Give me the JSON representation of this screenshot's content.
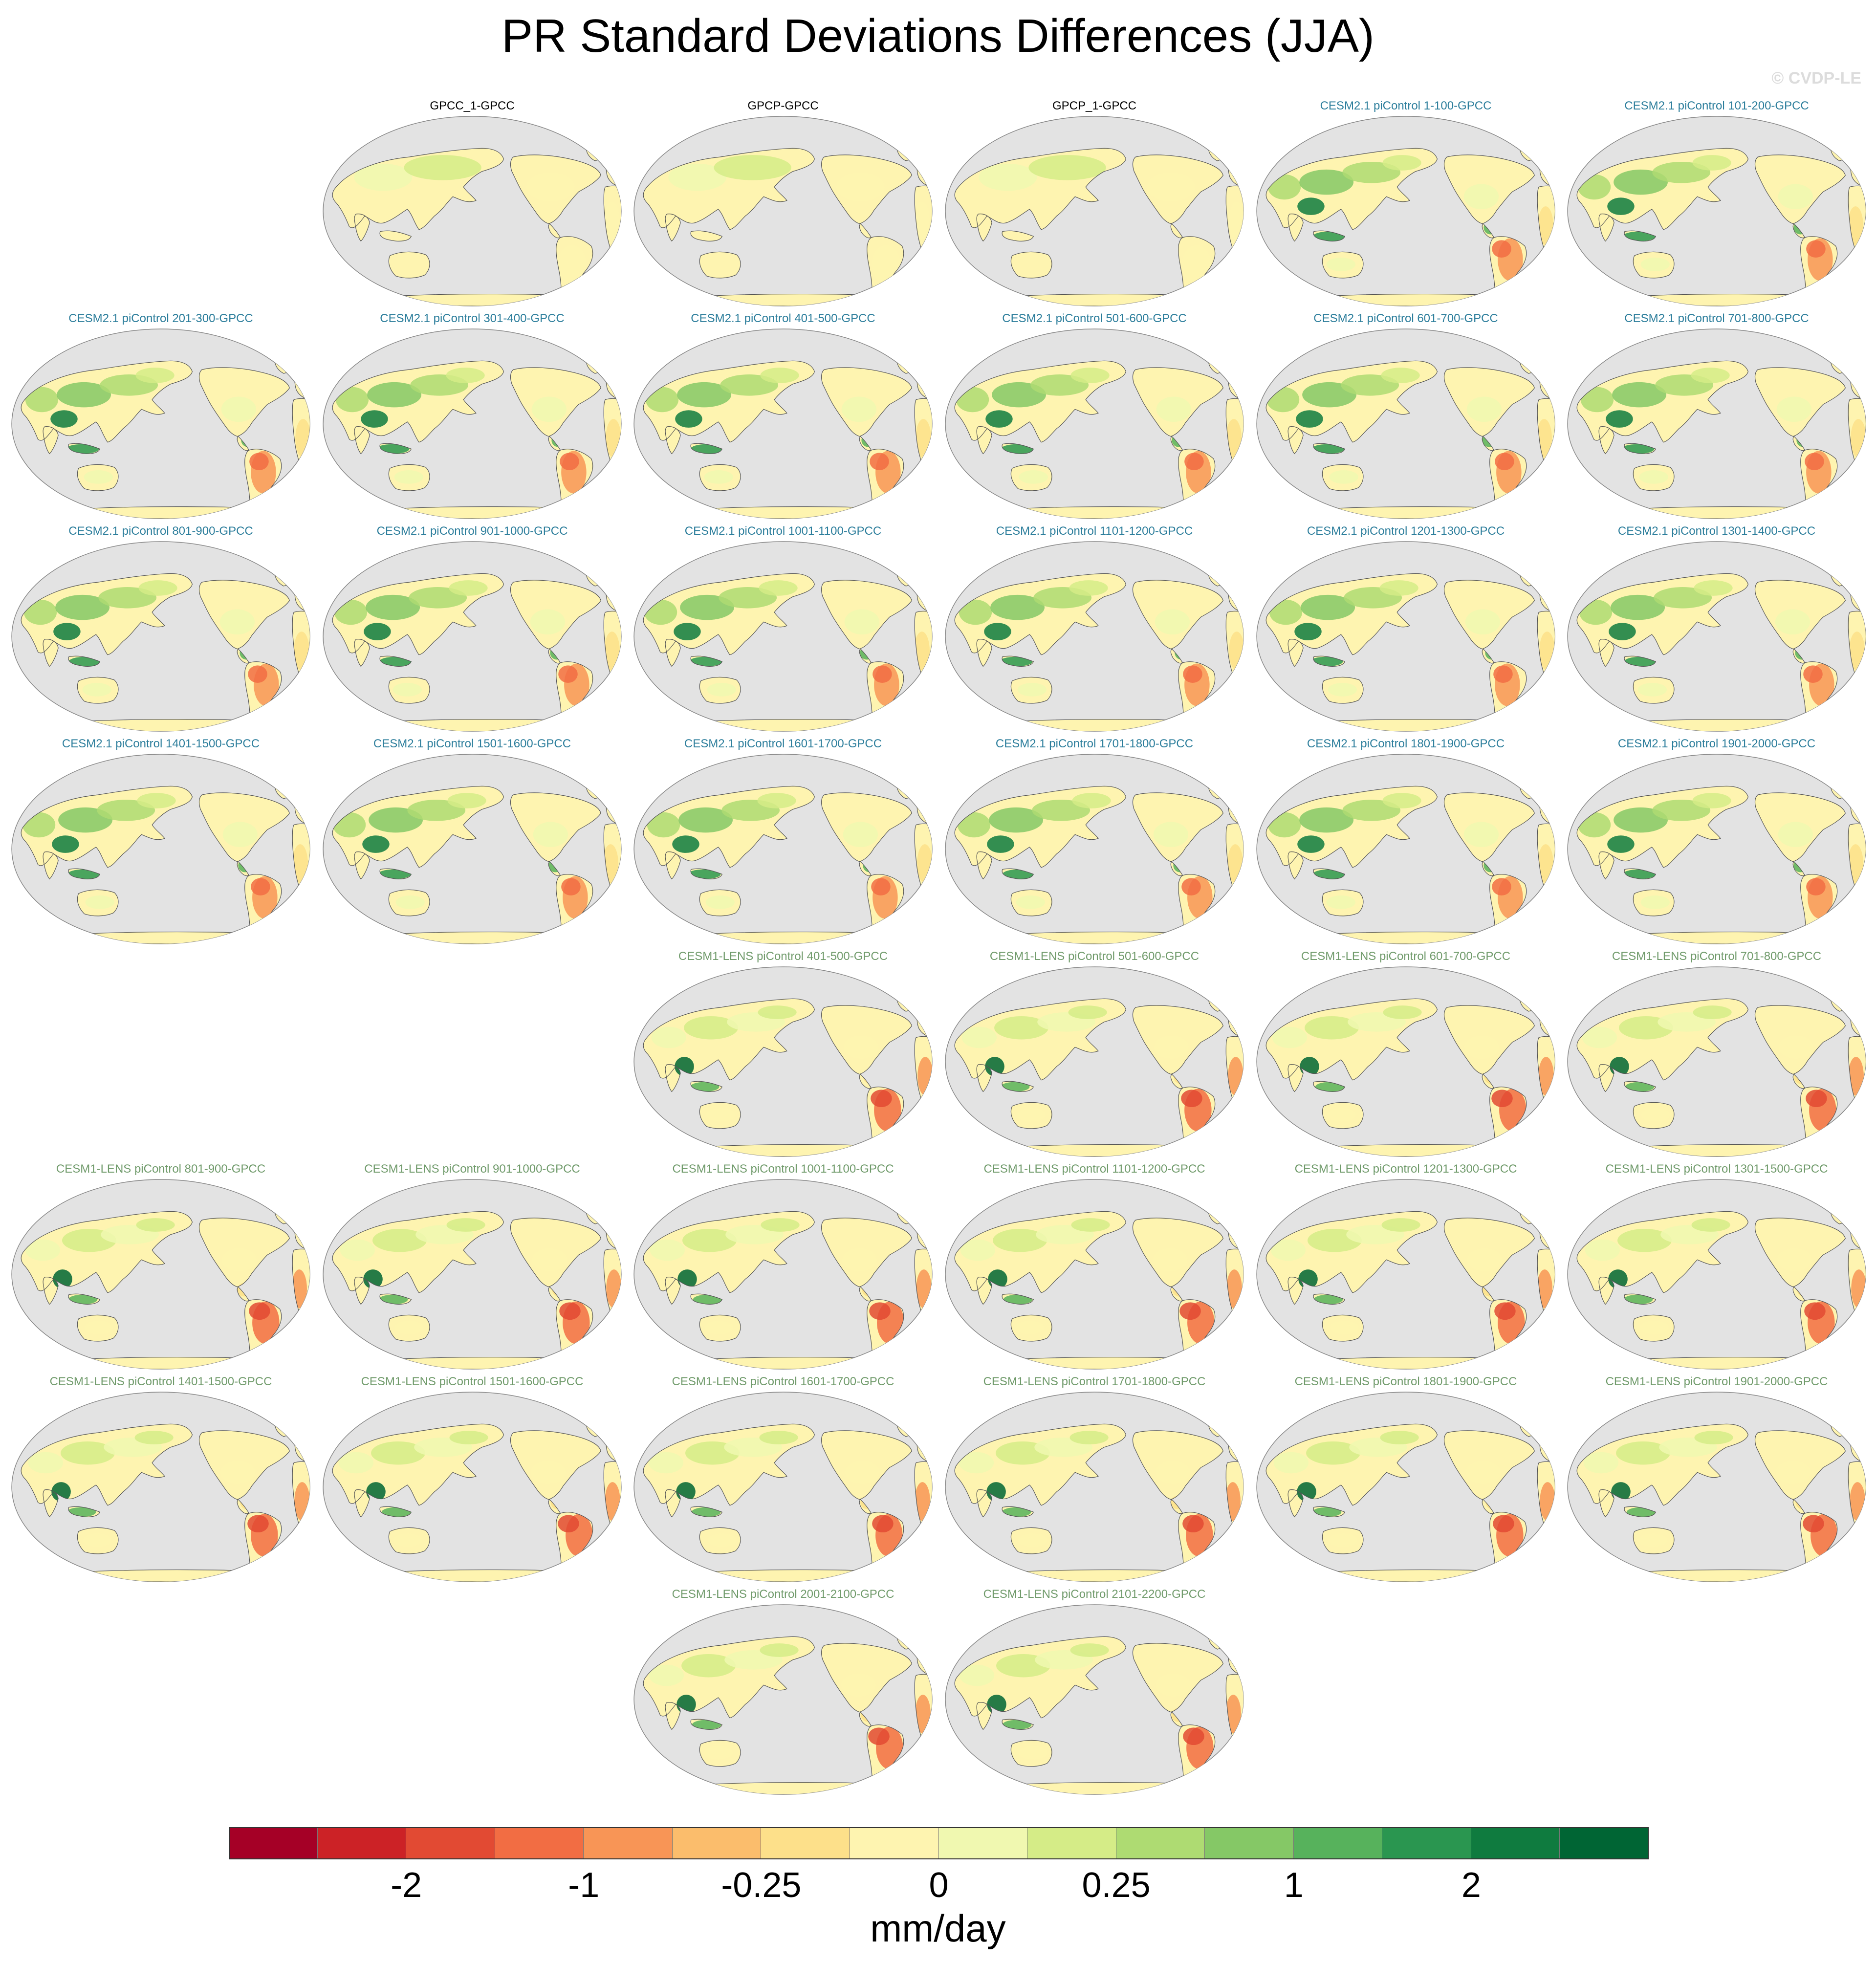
{
  "title": "PR Standard Deviations Differences (JJA)",
  "watermark": "© CVDP-LE",
  "colors": {
    "obs_title": "#000000",
    "cesm2_title": "#2b7d9b",
    "cesm1_title": "#6f9a6a",
    "ocean": "#e3e3e3",
    "coast": "#555555"
  },
  "colorbar": {
    "colors": [
      "#a50026",
      "#cc2226",
      "#e24a33",
      "#f26d43",
      "#f89556",
      "#fbbd6c",
      "#fde08a",
      "#fef4b0",
      "#f0f8b0",
      "#d5ec87",
      "#aedb72",
      "#85c866",
      "#57b25c",
      "#2a9650",
      "#0f7b3f",
      "#006534"
    ],
    "labels": [
      "-2",
      "-1",
      "-0.25",
      "0",
      "0.25",
      "1",
      "2"
    ],
    "units": "mm/day"
  },
  "panels": [
    {
      "label": "GPCC_1-GPCC",
      "group": "obs"
    },
    {
      "label": "GPCP-GPCC",
      "group": "obs"
    },
    {
      "label": "GPCP_1-GPCC",
      "group": "obs"
    },
    {
      "label": "CESM2.1 piControl 1-100-GPCC",
      "group": "cesm2"
    },
    {
      "label": "CESM2.1 piControl 101-200-GPCC",
      "group": "cesm2"
    },
    {
      "label": "CESM2.1 piControl 201-300-GPCC",
      "group": "cesm2"
    },
    {
      "label": "CESM2.1 piControl 301-400-GPCC",
      "group": "cesm2"
    },
    {
      "label": "CESM2.1 piControl 401-500-GPCC",
      "group": "cesm2"
    },
    {
      "label": "CESM2.1 piControl 501-600-GPCC",
      "group": "cesm2"
    },
    {
      "label": "CESM2.1 piControl 601-700-GPCC",
      "group": "cesm2"
    },
    {
      "label": "CESM2.1 piControl 701-800-GPCC",
      "group": "cesm2"
    },
    {
      "label": "CESM2.1 piControl 801-900-GPCC",
      "group": "cesm2"
    },
    {
      "label": "CESM2.1 piControl 901-1000-GPCC",
      "group": "cesm2"
    },
    {
      "label": "CESM2.1 piControl 1001-1100-GPCC",
      "group": "cesm2"
    },
    {
      "label": "CESM2.1 piControl 1101-1200-GPCC",
      "group": "cesm2"
    },
    {
      "label": "CESM2.1 piControl 1201-1300-GPCC",
      "group": "cesm2"
    },
    {
      "label": "CESM2.1 piControl 1301-1400-GPCC",
      "group": "cesm2"
    },
    {
      "label": "CESM2.1 piControl 1401-1500-GPCC",
      "group": "cesm2"
    },
    {
      "label": "CESM2.1 piControl 1501-1600-GPCC",
      "group": "cesm2"
    },
    {
      "label": "CESM2.1 piControl 1601-1700-GPCC",
      "group": "cesm2"
    },
    {
      "label": "CESM2.1 piControl 1701-1800-GPCC",
      "group": "cesm2"
    },
    {
      "label": "CESM2.1 piControl 1801-1900-GPCC",
      "group": "cesm2"
    },
    {
      "label": "CESM2.1 piControl 1901-2000-GPCC",
      "group": "cesm2"
    },
    {
      "label": "CESM1-LENS piControl 401-500-GPCC",
      "group": "cesm1"
    },
    {
      "label": "CESM1-LENS piControl 501-600-GPCC",
      "group": "cesm1"
    },
    {
      "label": "CESM1-LENS piControl 601-700-GPCC",
      "group": "cesm1"
    },
    {
      "label": "CESM1-LENS piControl 701-800-GPCC",
      "group": "cesm1"
    },
    {
      "label": "CESM1-LENS piControl 801-900-GPCC",
      "group": "cesm1"
    },
    {
      "label": "CESM1-LENS piControl 901-1000-GPCC",
      "group": "cesm1"
    },
    {
      "label": "CESM1-LENS piControl 1001-1100-GPCC",
      "group": "cesm1"
    },
    {
      "label": "CESM1-LENS piControl 1101-1200-GPCC",
      "group": "cesm1"
    },
    {
      "label": "CESM1-LENS piControl 1201-1300-GPCC",
      "group": "cesm1"
    },
    {
      "label": "CESM1-LENS piControl 1301-1500-GPCC",
      "group": "cesm1"
    },
    {
      "label": "CESM1-LENS piControl 1401-1500-GPCC",
      "group": "cesm1"
    },
    {
      "label": "CESM1-LENS piControl 1501-1600-GPCC",
      "group": "cesm1"
    },
    {
      "label": "CESM1-LENS piControl 1601-1700-GPCC",
      "group": "cesm1"
    },
    {
      "label": "CESM1-LENS piControl 1701-1800-GPCC",
      "group": "cesm1"
    },
    {
      "label": "CESM1-LENS piControl 1801-1900-GPCC",
      "group": "cesm1"
    },
    {
      "label": "CESM1-LENS piControl 1901-2000-GPCC",
      "group": "cesm1"
    },
    {
      "label": "CESM1-LENS piControl 2001-2100-GPCC",
      "group": "cesm1"
    },
    {
      "label": "CESM1-LENS piControl 2101-2200-GPCC",
      "group": "cesm1"
    }
  ]
}
